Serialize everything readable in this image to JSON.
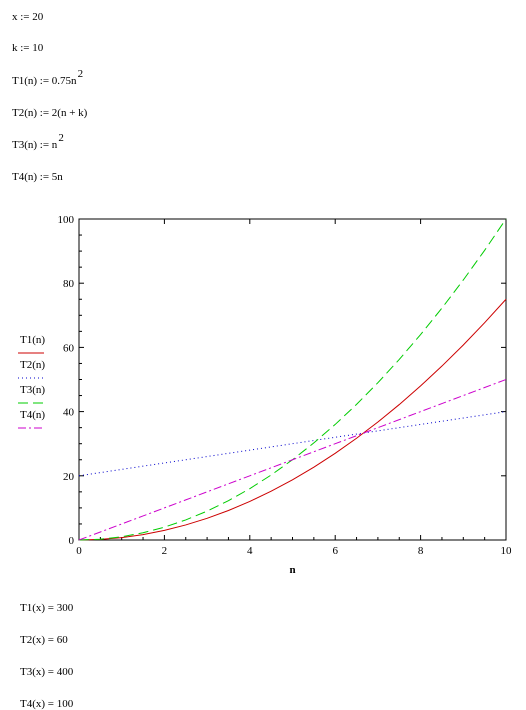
{
  "definitions": {
    "x": "x := 20",
    "k": "k := 10",
    "t1_main": "T1(n) := 0.75n",
    "t1_sup": "2",
    "t2": "T2(n) := 2(n + k)",
    "t3_main": "T3(n) := n",
    "t3_sup": "2",
    "t4": "T4(n) := 5n"
  },
  "results": {
    "t1": "T1(x) = 300",
    "t2": "T2(x) = 60",
    "t3": "T3(x) = 400",
    "t4": "T4(x) = 100"
  },
  "chart_data": {
    "type": "line",
    "title": "",
    "xlabel": "n",
    "ylabel": "",
    "xlim": [
      0,
      10
    ],
    "ylim": [
      0,
      100
    ],
    "x_ticks": [
      0,
      2,
      4,
      6,
      8,
      10
    ],
    "y_ticks": [
      0,
      20,
      40,
      60,
      80,
      100
    ],
    "grid": false,
    "legend_position": "left",
    "x": [
      0,
      0.5,
      1,
      1.5,
      2,
      2.5,
      3,
      3.5,
      4,
      4.5,
      5,
      5.5,
      6,
      6.5,
      7,
      7.5,
      8,
      8.5,
      9,
      9.5,
      10
    ],
    "series": [
      {
        "name": "T1(n)",
        "color": "#cc0000",
        "dash": "solid",
        "values": [
          0,
          0.19,
          0.75,
          1.69,
          3,
          4.69,
          6.75,
          9.19,
          12,
          15.19,
          18.75,
          22.69,
          27,
          31.69,
          36.75,
          42.19,
          48,
          54.19,
          60.75,
          67.69,
          75
        ]
      },
      {
        "name": "T2(n)",
        "color": "#0000cc",
        "dash": "dotted",
        "values": [
          20,
          21,
          22,
          23,
          24,
          25,
          26,
          27,
          28,
          29,
          30,
          31,
          32,
          33,
          34,
          35,
          36,
          37,
          38,
          39,
          40
        ]
      },
      {
        "name": "T3(n)",
        "color": "#00cc00",
        "dash": "dashed",
        "values": [
          0,
          0.25,
          1,
          2.25,
          4,
          6.25,
          9,
          12.25,
          16,
          20.25,
          25,
          30.25,
          36,
          42.25,
          49,
          56.25,
          64,
          72.25,
          81,
          90.25,
          100
        ]
      },
      {
        "name": "T4(n)",
        "color": "#cc00cc",
        "dash": "dashdot",
        "values": [
          0,
          2.5,
          5,
          7.5,
          10,
          12.5,
          15,
          17.5,
          20,
          22.5,
          25,
          27.5,
          30,
          32.5,
          35,
          37.5,
          40,
          42.5,
          45,
          47.5,
          50
        ]
      }
    ]
  }
}
